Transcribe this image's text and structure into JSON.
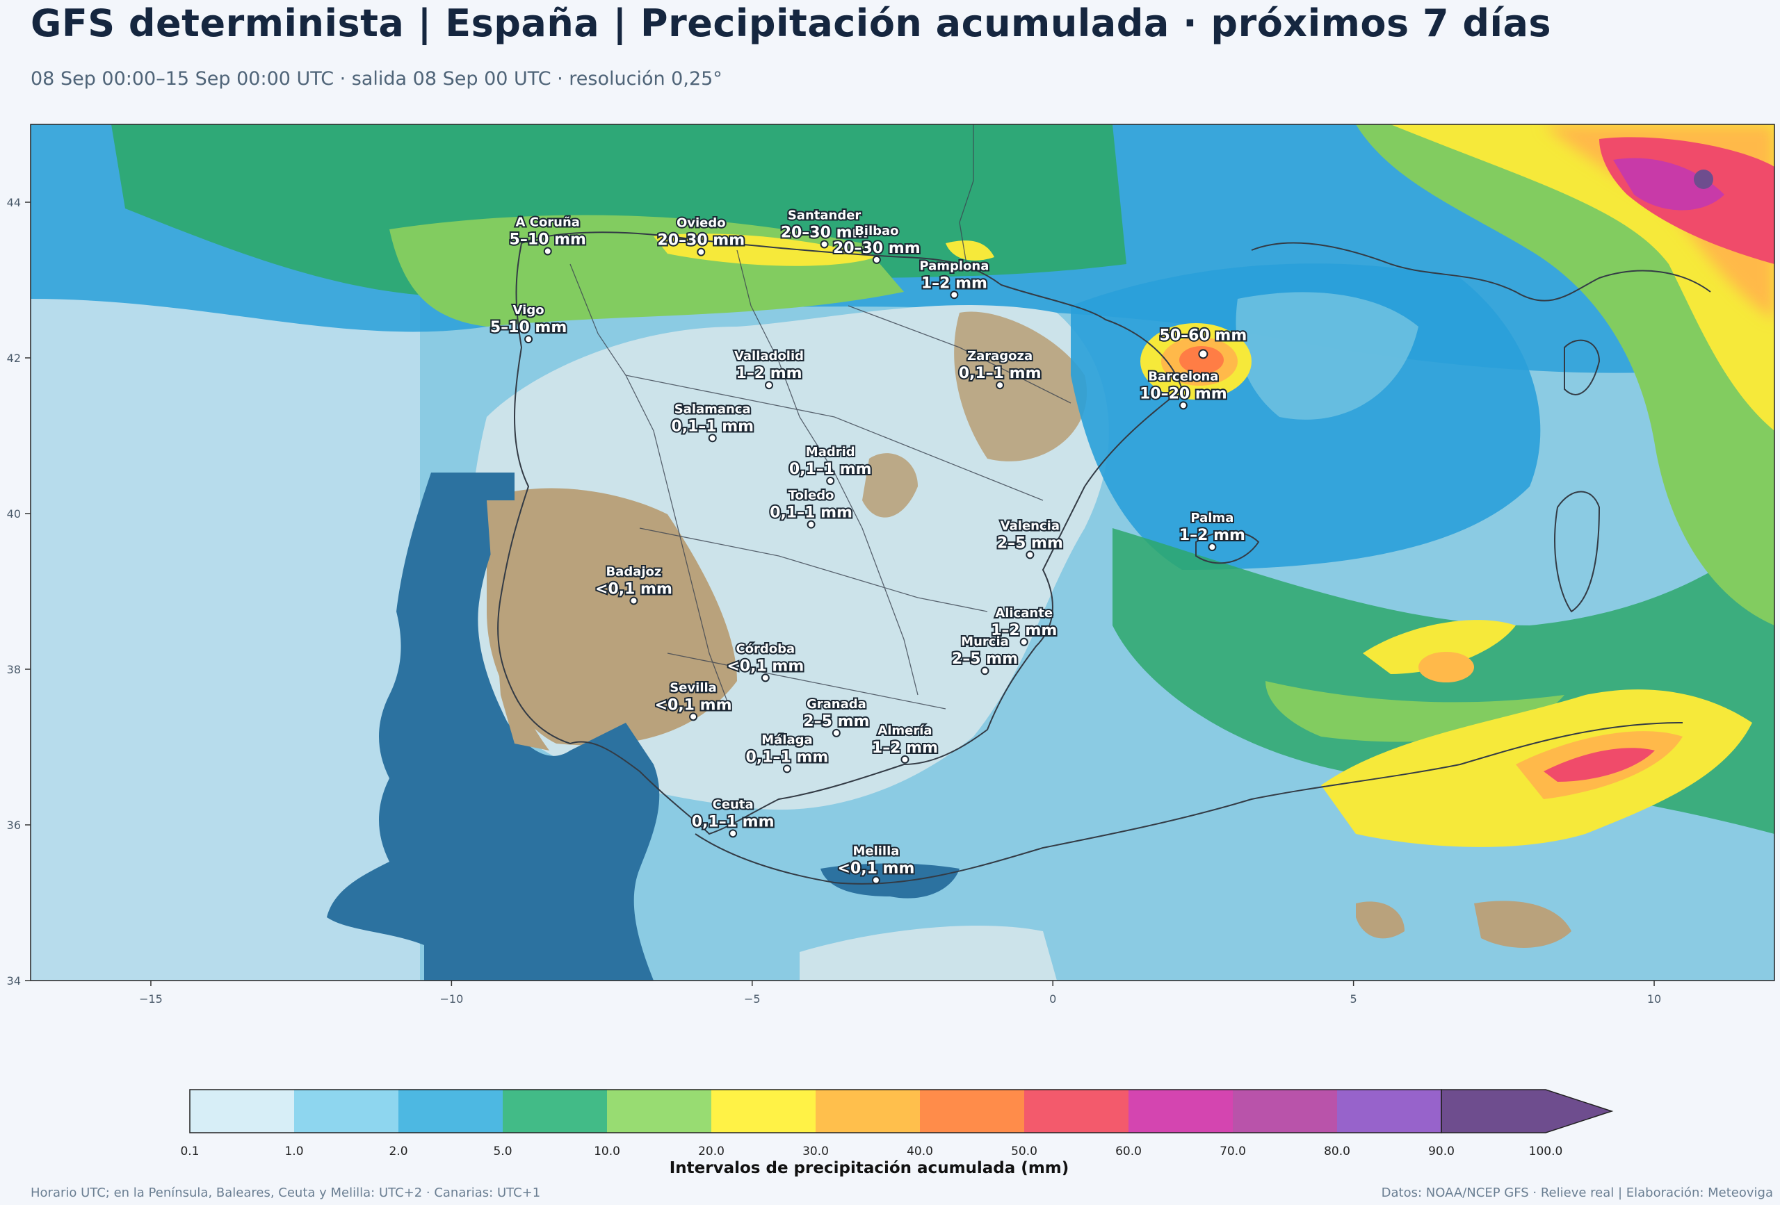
{
  "header": {
    "title": "GFS determinista | España | Precipitación acumulada · próximos 7 días",
    "subtitle": "08 Sep 00:00–15 Sep 00:00 UTC · salida 08 Sep 00 UTC · resolución 0,25°"
  },
  "map": {
    "extent": {
      "lon": [
        -17,
        12
      ],
      "lat": [
        34,
        45
      ]
    },
    "x_ticks": [
      -15,
      -10,
      -5,
      0,
      5,
      10
    ],
    "y_ticks": [
      34,
      36,
      38,
      40,
      42,
      44
    ],
    "cities": [
      {
        "name": "A Coruña",
        "value": "5–10 mm",
        "lon": -8.4,
        "lat": 43.37
      },
      {
        "name": "Oviedo",
        "value": "20–30 mm",
        "lon": -5.85,
        "lat": 43.36
      },
      {
        "name": "Santander",
        "value": "20–30 mm",
        "lon": -3.8,
        "lat": 43.46
      },
      {
        "name": "Pamplona",
        "value": "1–2 mm",
        "lon": -1.64,
        "lat": 42.81
      },
      {
        "name": "Bilbao",
        "value": "20–30 mm",
        "lon": -2.93,
        "lat": 43.26
      },
      {
        "name": "Valladolid",
        "value": "1–2 mm",
        "lon": -4.72,
        "lat": 41.65
      },
      {
        "name": "Zaragoza",
        "value": "0,1–1 mm",
        "lon": -0.88,
        "lat": 41.65
      },
      {
        "name": "Vigo",
        "value": "5–10 mm",
        "lon": -8.72,
        "lat": 42.24
      },
      {
        "name": "Barcelona",
        "value": "10–20 mm",
        "lon": 2.17,
        "lat": 41.39
      },
      {
        "name": "Salamanca",
        "value": "0,1–1 mm",
        "lon": -5.66,
        "lat": 40.97
      },
      {
        "name": "Madrid",
        "value": "0,1–1 mm",
        "lon": -3.7,
        "lat": 40.42
      },
      {
        "name": "Valencia",
        "value": "2–5 mm",
        "lon": -0.38,
        "lat": 39.47
      },
      {
        "name": "Toledo",
        "value": "0,1–1 mm",
        "lon": -4.02,
        "lat": 39.86
      },
      {
        "name": "Badajoz",
        "value": "<0,1 mm",
        "lon": -6.97,
        "lat": 38.88
      },
      {
        "name": "Palma",
        "value": "1–2 mm",
        "lon": 2.65,
        "lat": 39.57
      },
      {
        "name": "Córdoba",
        "value": "<0,1 mm",
        "lon": -4.78,
        "lat": 37.89
      },
      {
        "name": "Alicante",
        "value": "1–2 mm",
        "lon": -0.48,
        "lat": 38.35
      },
      {
        "name": "Granada",
        "value": "2–5 mm",
        "lon": -3.6,
        "lat": 37.18
      },
      {
        "name": "Murcia",
        "value": "2–5 mm",
        "lon": -1.13,
        "lat": 37.98
      },
      {
        "name": "Sevilla",
        "value": "<0,1 mm",
        "lon": -5.98,
        "lat": 37.39
      },
      {
        "name": "Almería",
        "value": "1–2 mm",
        "lon": -2.46,
        "lat": 36.84
      },
      {
        "name": "Málaga",
        "value": "0,1–1 mm",
        "lon": -4.42,
        "lat": 36.72
      },
      {
        "name": "Ceuta",
        "value": "0,1–1 mm",
        "lon": -5.32,
        "lat": 35.89
      },
      {
        "name": "Melilla",
        "value": "<0,1 mm",
        "lon": -2.94,
        "lat": 35.29
      }
    ],
    "max_label": {
      "value": "50–60 mm",
      "lon": 2.5,
      "lat": 42.05
    }
  },
  "colorbar": {
    "ticks": [
      "0.1",
      "1.0",
      "2.0",
      "5.0",
      "10.0",
      "20.0",
      "30.0",
      "40.0",
      "50.0",
      "60.0",
      "70.0",
      "80.0",
      "90.0",
      "100.0"
    ],
    "colors": [
      "#d7eef7",
      "#8ed6ef",
      "#4db8e2",
      "#42bb87",
      "#98dc72",
      "#fff246",
      "#ffbf4c",
      "#ff8c4a",
      "#f35a6c",
      "#d445b0",
      "#b953aa",
      "#9763cb",
      "#6e4d8e"
    ],
    "label": "Intervalos de precipitación acumulada (mm)"
  },
  "footer": {
    "left": "Horario UTC; en la Península, Baleares, Ceuta y Melilla: UTC+2 · Canarias: UTC+1",
    "right": "Datos: NOAA/NCEP GFS · Relieve real | Elaboración: Meteoviga"
  }
}
